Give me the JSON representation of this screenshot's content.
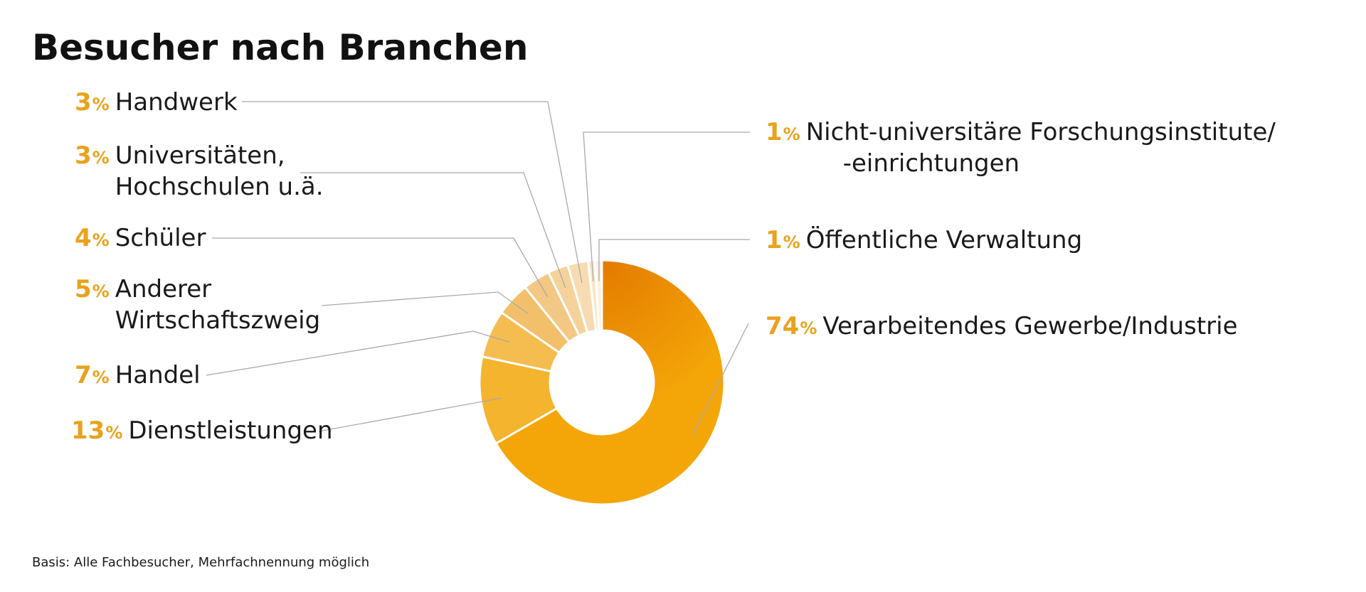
{
  "chart_data": {
    "type": "pie",
    "title": "Besucher nach Branchen",
    "unit": "%",
    "segments": [
      {
        "label": "Verarbeitendes Gewerbe/Industrie",
        "label_lines": [
          "Verarbeitendes Gewerbe/Industrie"
        ],
        "value": 74,
        "color": "#f4a608"
      },
      {
        "label": "Dienstleistungen",
        "label_lines": [
          "Dienstleistungen"
        ],
        "value": 13,
        "color": "#f5b42e"
      },
      {
        "label": "Handel",
        "label_lines": [
          "Handel"
        ],
        "value": 7,
        "color": "#f5bd4f"
      },
      {
        "label": "Anderer Wirtschaftszweig",
        "label_lines": [
          "Anderer",
          "Wirtschaftszweig"
        ],
        "value": 5,
        "color": "#f2c06a"
      },
      {
        "label": "Schüler",
        "label_lines": [
          "Schüler"
        ],
        "value": 4,
        "color": "#f3c784"
      },
      {
        "label": "Universitäten, Hochschulen u.ä.",
        "label_lines": [
          "Universitäten,",
          "Hochschulen u.ä."
        ],
        "value": 3,
        "color": "#f6d29b"
      },
      {
        "label": "Handwerk",
        "label_lines": [
          "Handwerk"
        ],
        "value": 3,
        "color": "#f8dcb1"
      },
      {
        "label": "Nicht-universitäre Forschungsinstitute/-einrichtungen",
        "label_lines": [
          "Nicht-universitäre Forschungsinstitute/",
          "-einrichtungen"
        ],
        "value": 1,
        "color": "#fae6c9"
      },
      {
        "label": "Öffentliche Verwaltung",
        "label_lines": [
          "Öffentliche Verwaltung"
        ],
        "value": 1,
        "color": "#fcf0df"
      }
    ],
    "gradient_accent": "#e37a00",
    "legend": "labels-with-leader-lines",
    "footnote": "Basis: Alle Fachbesucher, Mehrfachnennung möglich"
  }
}
